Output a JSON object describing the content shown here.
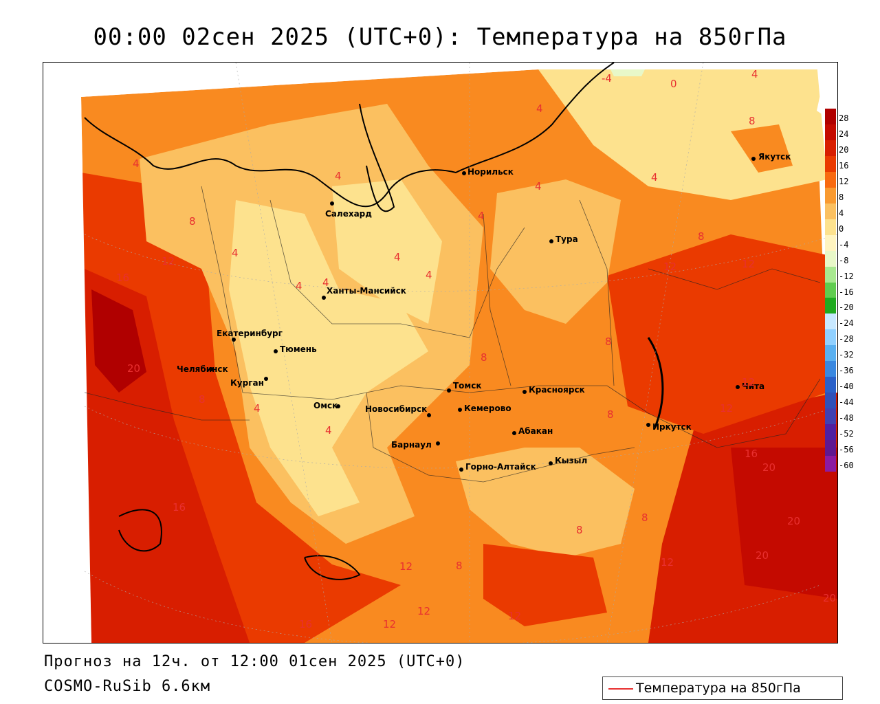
{
  "title": "00:00 02сен 2025 (UTC+0): Температура на 850гПа",
  "footer": {
    "forecast": "Прогноз на 12ч. от 12:00 01сен 2025 (UTC+0)",
    "model": "COSMO-RuSib 6.6км"
  },
  "legend": {
    "label": "Температура на 850гПа",
    "line_color": "#e83030"
  },
  "colorbar": {
    "unit_hint": "°C",
    "ticks": [
      "28",
      "24",
      "20",
      "16",
      "12",
      "8",
      "4",
      "0",
      "-4",
      "-8",
      "-12",
      "-16",
      "-20",
      "-24",
      "-28",
      "-32",
      "-36",
      "-40",
      "-44",
      "-48",
      "-52",
      "-56",
      "-60"
    ],
    "colors": [
      "#b00000",
      "#c40a00",
      "#d81e00",
      "#ea3a00",
      "#f86a10",
      "#f99a30",
      "#fbc060",
      "#fde28e",
      "#fff4c0",
      "#e8f8c8",
      "#a8e890",
      "#60cc50",
      "#20aa20",
      "#c8e8ff",
      "#90d0ff",
      "#5ab0f0",
      "#3a88e0",
      "#2a60c8",
      "#3050b8",
      "#4040b0",
      "#5020a0",
      "#601890",
      "#8c1aa0"
    ]
  },
  "cities": [
    {
      "name": "Норильск"
    },
    {
      "name": "Якутск"
    },
    {
      "name": "Салехард"
    },
    {
      "name": "Тура"
    },
    {
      "name": "Ханты-Мансийск"
    },
    {
      "name": "Екатеринбург"
    },
    {
      "name": "Тюмень"
    },
    {
      "name": "Челябинск"
    },
    {
      "name": "Курган"
    },
    {
      "name": "Омск"
    },
    {
      "name": "Новосибирск"
    },
    {
      "name": "Томск"
    },
    {
      "name": "Кемерово"
    },
    {
      "name": "Красноярск"
    },
    {
      "name": "Барнаул"
    },
    {
      "name": "Абакан"
    },
    {
      "name": "Иркутск"
    },
    {
      "name": "Чита"
    },
    {
      "name": "Горно-Алтайск"
    },
    {
      "name": "Кызыл"
    }
  ],
  "isolines": [
    "-4",
    "0",
    "4",
    "4",
    "4",
    "4",
    "4",
    "4",
    "4",
    "4",
    "4",
    "4",
    "4",
    "4",
    "4",
    "4",
    "8",
    "8",
    "8",
    "8",
    "8",
    "8",
    "8",
    "8",
    "8",
    "8",
    "12",
    "12",
    "12",
    "12",
    "12",
    "12",
    "12",
    "12",
    "12",
    "12",
    "16",
    "16",
    "16",
    "16",
    "20",
    "20",
    "20",
    "20",
    "20"
  ]
}
